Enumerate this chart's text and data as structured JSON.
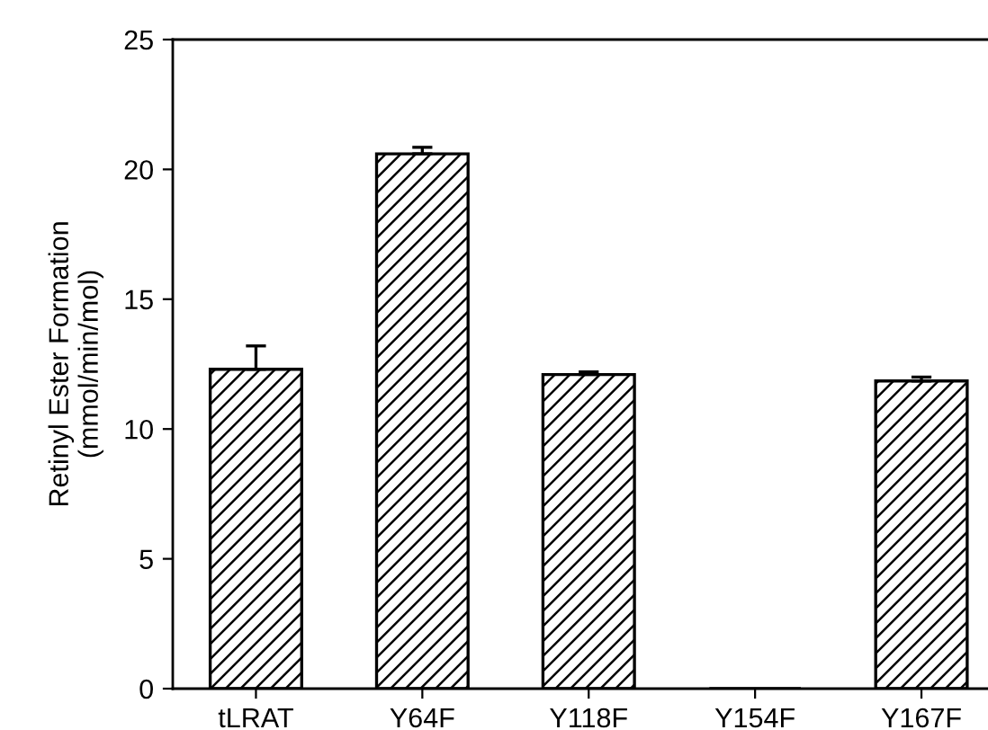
{
  "chart_data": {
    "type": "bar",
    "ylabel": "Retinyl Ester Formation\n(mmol/min/mol)",
    "categories": [
      "tLRAT",
      "Y64F",
      "Y118F",
      "Y154F",
      "Y167F"
    ],
    "values": [
      12.3,
      20.6,
      12.1,
      0,
      11.85
    ],
    "errors": [
      0.9,
      0.25,
      0.1,
      null,
      0.15
    ],
    "color": "#000000",
    "ylim": [
      0,
      25
    ],
    "yticks": [
      0,
      5,
      10,
      15,
      20,
      25
    ],
    "grid": false
  }
}
